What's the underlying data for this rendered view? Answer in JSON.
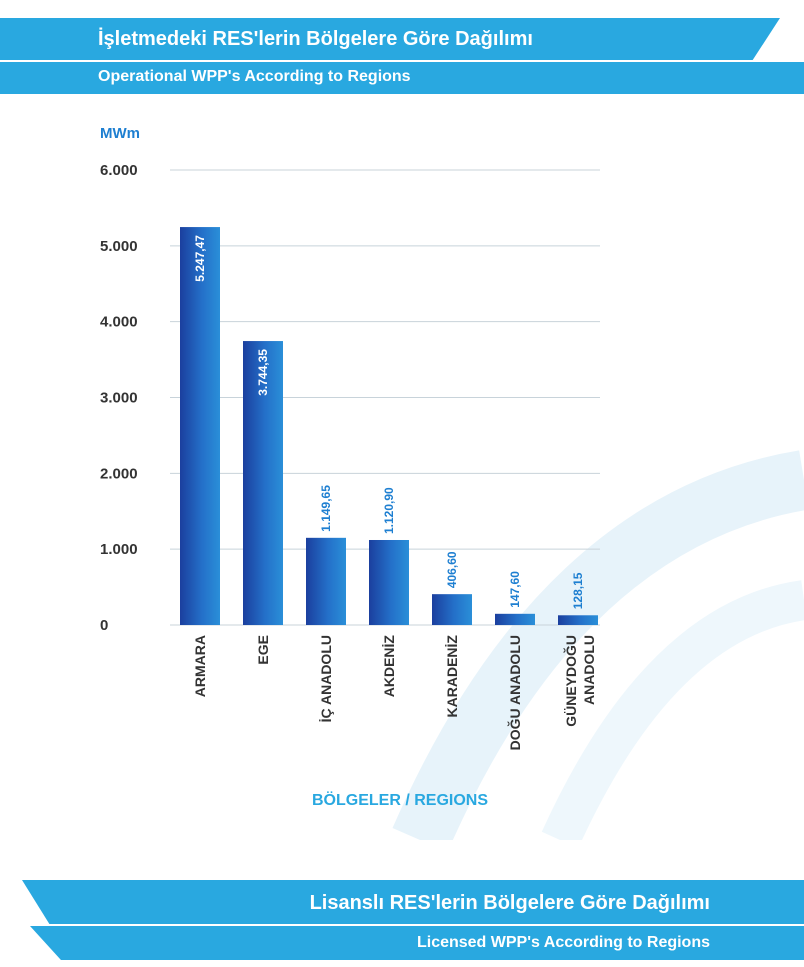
{
  "header": {
    "title_tr": "İşletmedeki RES'lerin Bölgelere Göre Dağılımı",
    "title_en": "Operational WPP's According to Regions"
  },
  "footer": {
    "title_tr": "Lisanslı RES'lerin Bölgelere Göre Dağılımı",
    "title_en": "Licensed WPP's According to Regions"
  },
  "colors": {
    "brand": "#29a8e0",
    "bar_dark": "#1b3f9e",
    "bar_light": "#2a8fd8",
    "label_blue": "#1e7fd1",
    "text_dark": "#333333"
  },
  "chart_data": {
    "type": "bar",
    "ylabel": "MWm",
    "xlabel": "BÖLGELER / REGIONS",
    "ylim": [
      0,
      6000
    ],
    "y_ticks": [
      0,
      1000,
      2000,
      3000,
      4000,
      5000,
      6000
    ],
    "y_tick_labels": [
      "0",
      "1.000",
      "2.000",
      "3.000",
      "4.000",
      "5.000",
      "6.000"
    ],
    "grid": true,
    "categories": [
      "ARMARA",
      "EGE",
      "İÇ ANADOLU",
      "AKDENİZ",
      "KARADENİZ",
      "DOĞU ANADOLU",
      "GÜNEYDOĞU ANADOLU"
    ],
    "values": [
      5247.47,
      3744.35,
      1149.65,
      1120.9,
      406.6,
      147.6,
      128.15
    ],
    "value_labels": [
      "5.247,47",
      "3.744,35",
      "1.149,65",
      "1.120,90",
      "406,60",
      "147,60",
      "128,15"
    ]
  }
}
